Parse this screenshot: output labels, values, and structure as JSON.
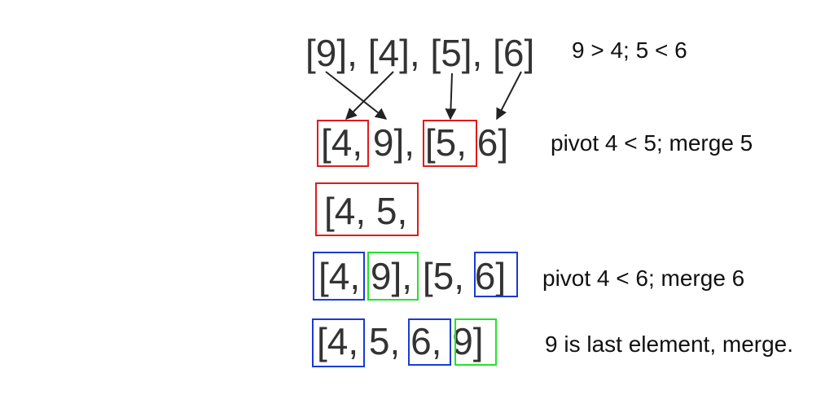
{
  "colors": {
    "red": "#e01b1b",
    "blue": "#1a3bd6",
    "green": "#22e32a",
    "arrow": "#222222"
  },
  "rows": {
    "r1": {
      "text": "[9], [4], [5], [6]",
      "note": "9 > 4; 5 < 6"
    },
    "r2": {
      "text": "[4, 9], [5, 6]",
      "note": "pivot 4 < 5; merge 5"
    },
    "r3": {
      "text": "[4, 5,"
    },
    "r4": {
      "text": "[4, 9], [5, 6]",
      "note": "pivot 4 < 6; merge 6"
    },
    "r5": {
      "text": "[4, 5, 6, 9]",
      "note": "9 is last element, merge."
    }
  }
}
